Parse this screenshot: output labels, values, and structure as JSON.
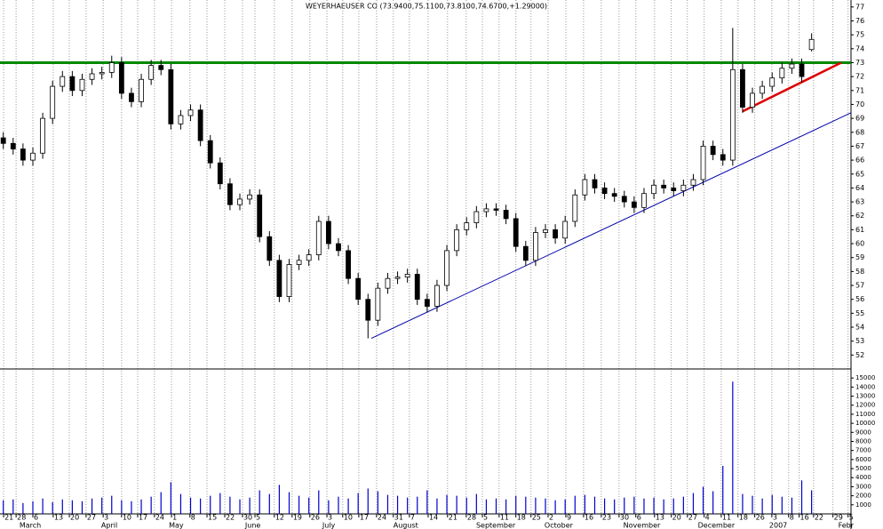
{
  "chart_data": {
    "type": "candlestick",
    "title": "WEYERHAEUSER CO (73.9400,75.1100,73.8100,74.6700,+1.29000)",
    "x": [
      1,
      4,
      7,
      10,
      13,
      16,
      19,
      22,
      25,
      28,
      31,
      34,
      37,
      40,
      43,
      46,
      49,
      52,
      55,
      58,
      61,
      64,
      67,
      70,
      73,
      76,
      79,
      82,
      85,
      88,
      91,
      94,
      97,
      100,
      103,
      106,
      109,
      112,
      115,
      118,
      121,
      124,
      127,
      130,
      133,
      136,
      139,
      142,
      145,
      148,
      151,
      154,
      157,
      160,
      163,
      166,
      169,
      172,
      175,
      178,
      181,
      184,
      187,
      190,
      193,
      196,
      199,
      202,
      205,
      208,
      211,
      214,
      217,
      220,
      223,
      226,
      229,
      232,
      235,
      238,
      241,
      244,
      247
    ],
    "open": [
      67.6,
      67.2,
      66.8,
      66.0,
      66.5,
      69.0,
      71.3,
      72.0,
      71.0,
      71.8,
      72.2,
      72.3,
      73.0,
      70.8,
      70.2,
      71.8,
      72.8,
      72.5,
      68.6,
      69.2,
      69.6,
      67.4,
      65.8,
      64.3,
      62.8,
      63.2,
      63.5,
      60.5,
      58.8,
      56.2,
      58.5,
      58.8,
      59.2,
      61.6,
      60.0,
      59.5,
      57.5,
      56.0,
      54.5,
      56.8,
      57.5,
      57.6,
      57.8,
      56.0,
      55.5,
      57.0,
      59.5,
      61.0,
      61.5,
      62.3,
      62.5,
      62.4,
      61.8,
      59.8,
      58.8,
      60.8,
      61.0,
      60.4,
      61.6,
      63.5,
      64.6,
      64.0,
      63.6,
      63.4,
      63.0,
      62.6,
      63.6,
      64.2,
      64.0,
      63.8,
      64.2,
      64.6,
      67.0,
      66.4,
      66.0,
      72.5,
      69.8,
      70.8,
      71.3,
      71.9,
      72.6,
      72.9,
      73.94
    ],
    "high": [
      68.0,
      67.6,
      67.2,
      66.9,
      69.4,
      71.7,
      72.4,
      72.4,
      72.2,
      72.6,
      72.7,
      73.5,
      73.4,
      71.2,
      72.2,
      73.2,
      73.2,
      72.9,
      69.6,
      70.0,
      70.0,
      67.8,
      66.2,
      64.7,
      63.6,
      63.9,
      63.9,
      60.9,
      59.2,
      58.9,
      59.2,
      59.6,
      62.0,
      62.0,
      60.4,
      59.9,
      57.9,
      56.4,
      57.2,
      57.9,
      58.0,
      58.2,
      58.2,
      56.4,
      57.4,
      59.9,
      61.4,
      61.9,
      62.7,
      62.9,
      62.9,
      62.8,
      62.2,
      60.2,
      61.2,
      61.4,
      61.4,
      62.0,
      63.9,
      65.0,
      65.0,
      64.4,
      64.0,
      63.8,
      63.4,
      64.0,
      64.6,
      64.6,
      64.4,
      64.6,
      65.0,
      67.4,
      67.4,
      66.8,
      75.5,
      72.9,
      71.2,
      71.7,
      72.3,
      73.0,
      73.3,
      73.3,
      75.11
    ],
    "low": [
      66.8,
      66.4,
      65.6,
      65.6,
      66.1,
      68.6,
      70.9,
      70.6,
      70.6,
      71.4,
      71.8,
      71.9,
      70.4,
      69.8,
      69.8,
      71.4,
      72.1,
      68.2,
      68.2,
      68.8,
      67.0,
      65.4,
      63.9,
      62.4,
      62.4,
      62.8,
      60.1,
      58.4,
      55.8,
      55.8,
      58.1,
      58.4,
      58.8,
      59.6,
      59.1,
      57.1,
      55.6,
      53.2,
      54.1,
      56.4,
      57.1,
      57.2,
      55.6,
      55.1,
      55.1,
      56.6,
      59.1,
      60.6,
      61.1,
      61.9,
      62.0,
      61.4,
      59.4,
      58.4,
      58.4,
      60.4,
      60.0,
      60.0,
      61.2,
      63.1,
      63.6,
      63.2,
      63.0,
      62.6,
      62.2,
      62.2,
      63.2,
      63.6,
      63.4,
      63.4,
      63.8,
      64.2,
      66.0,
      65.6,
      65.6,
      69.4,
      69.4,
      70.4,
      70.9,
      71.5,
      72.2,
      71.6,
      73.81
    ],
    "close": [
      67.2,
      66.8,
      66.0,
      66.5,
      69.0,
      71.3,
      72.0,
      71.0,
      71.8,
      72.2,
      72.3,
      73.0,
      70.8,
      70.2,
      71.8,
      72.8,
      72.5,
      68.6,
      69.2,
      69.6,
      67.4,
      65.8,
      64.3,
      62.8,
      63.2,
      63.5,
      60.5,
      58.8,
      56.2,
      58.5,
      58.8,
      59.2,
      61.6,
      60.0,
      59.5,
      57.5,
      56.0,
      54.5,
      56.8,
      57.5,
      57.6,
      57.8,
      56.0,
      55.5,
      57.0,
      59.5,
      61.0,
      61.5,
      62.3,
      62.5,
      62.4,
      61.8,
      59.8,
      58.8,
      60.8,
      61.0,
      60.4,
      61.6,
      63.5,
      64.6,
      64.0,
      63.6,
      63.4,
      63.0,
      62.6,
      63.6,
      64.2,
      64.0,
      63.8,
      64.2,
      64.6,
      67.0,
      66.4,
      66.0,
      72.5,
      69.8,
      70.8,
      71.3,
      71.9,
      72.6,
      72.9,
      72.0,
      74.67
    ],
    "volume": [
      1500,
      1600,
      1200,
      1400,
      1700,
      1300,
      1600,
      1500,
      1400,
      1700,
      1800,
      2000,
      1500,
      1400,
      1600,
      1900,
      2400,
      3500,
      2200,
      1800,
      1700,
      2000,
      2300,
      1900,
      1600,
      1800,
      2600,
      2200,
      3200,
      2400,
      2000,
      1800,
      2600,
      1500,
      1900,
      1700,
      2300,
      2800,
      2500,
      2100,
      2000,
      1800,
      1900,
      2600,
      1700,
      2100,
      2000,
      1800,
      2200,
      1600,
      1700,
      1600,
      2000,
      1900,
      1800,
      1700,
      1500,
      1600,
      2000,
      2100,
      1900,
      1700,
      1600,
      1800,
      1900,
      1700,
      1800,
      1600,
      1700,
      1900,
      2300,
      3000,
      2500,
      5300,
      14600,
      2200,
      2000,
      1700,
      2100,
      1900,
      1800,
      3700,
      2600
    ],
    "volume_color": "#0000cc",
    "xlim": [
      0,
      259
    ],
    "ylim": [
      51,
      77.5
    ],
    "yticks": [
      52,
      53,
      54,
      55,
      56,
      57,
      58,
      59,
      60,
      61,
      62,
      63,
      64,
      65,
      66,
      67,
      68,
      69,
      70,
      71,
      72,
      73,
      74,
      75,
      76,
      77
    ],
    "volume_ylim": [
      0,
      15900
    ],
    "volume_yticks": [
      1000,
      2000,
      3000,
      4000,
      5000,
      6000,
      7000,
      8000,
      9000,
      10000,
      11000,
      12000,
      13000,
      14000,
      15000
    ],
    "xticks": [
      {
        "value": 1.1,
        "label": "21"
      },
      {
        "value": 4.9,
        "label": "28"
      },
      {
        "value": 10,
        "label": "6"
      },
      {
        "value": 16.2,
        "label": "13"
      },
      {
        "value": 21.1,
        "label": "20"
      },
      {
        "value": 26.2,
        "label": "27"
      },
      {
        "value": 31.4,
        "label": "3"
      },
      {
        "value": 37,
        "label": "10"
      },
      {
        "value": 41.9,
        "label": "17"
      },
      {
        "value": 47,
        "label": "24"
      },
      {
        "value": 52.2,
        "label": "1"
      },
      {
        "value": 57.8,
        "label": "8"
      },
      {
        "value": 63,
        "label": "15"
      },
      {
        "value": 68.4,
        "label": "22"
      },
      {
        "value": 73.8,
        "label": "30"
      },
      {
        "value": 77.6,
        "label": "5"
      },
      {
        "value": 83.5,
        "label": "12"
      },
      {
        "value": 88.9,
        "label": "19"
      },
      {
        "value": 94.3,
        "label": "26"
      },
      {
        "value": 99.5,
        "label": "3"
      },
      {
        "value": 104.3,
        "label": "10"
      },
      {
        "value": 109.2,
        "label": "17"
      },
      {
        "value": 114.6,
        "label": "24"
      },
      {
        "value": 119.7,
        "label": "31"
      },
      {
        "value": 124.6,
        "label": "7"
      },
      {
        "value": 130.3,
        "label": "14"
      },
      {
        "value": 136.2,
        "label": "21"
      },
      {
        "value": 141.9,
        "label": "28"
      },
      {
        "value": 146.8,
        "label": "5"
      },
      {
        "value": 151.9,
        "label": "11"
      },
      {
        "value": 157,
        "label": "18"
      },
      {
        "value": 161.6,
        "label": "25"
      },
      {
        "value": 166.8,
        "label": "2"
      },
      {
        "value": 172.2,
        "label": "9"
      },
      {
        "value": 177.6,
        "label": "16"
      },
      {
        "value": 183,
        "label": "23"
      },
      {
        "value": 188.4,
        "label": "30"
      },
      {
        "value": 193.5,
        "label": "6"
      },
      {
        "value": 199.2,
        "label": "13"
      },
      {
        "value": 204.3,
        "label": "20"
      },
      {
        "value": 209.2,
        "label": "27"
      },
      {
        "value": 214.3,
        "label": "4"
      },
      {
        "value": 219.5,
        "label": "11"
      },
      {
        "value": 224.6,
        "label": "18"
      },
      {
        "value": 229.7,
        "label": "26"
      },
      {
        "value": 234.9,
        "label": "3"
      },
      {
        "value": 240,
        "label": "8"
      },
      {
        "value": 243.2,
        "label": "16"
      },
      {
        "value": 247.6,
        "label": "22"
      },
      {
        "value": 253.5,
        "label": "29"
      },
      {
        "value": 258.1,
        "label": "5"
      }
    ],
    "month_labels": [
      {
        "value": 5.9,
        "label": "March"
      },
      {
        "value": 30.8,
        "label": "April"
      },
      {
        "value": 51.4,
        "label": "May"
      },
      {
        "value": 74.6,
        "label": "June"
      },
      {
        "value": 98.1,
        "label": "July"
      },
      {
        "value": 119.7,
        "label": "August"
      },
      {
        "value": 144.9,
        "label": "September"
      },
      {
        "value": 165.7,
        "label": "October"
      },
      {
        "value": 189.7,
        "label": "November"
      },
      {
        "value": 212.4,
        "label": "December"
      },
      {
        "value": 234.1,
        "label": "2007"
      },
      {
        "value": 255.1,
        "label": "Febr"
      }
    ],
    "trendlines": [
      {
        "color": "#008800",
        "x": [
          0,
          259
        ],
        "y": [
          73,
          73
        ]
      },
      {
        "color": "#0000aa",
        "x": [
          113,
          259
        ],
        "y": [
          53.2,
          69.4
        ]
      },
      {
        "color": "#dd0000",
        "x": [
          226,
          256
        ],
        "y": [
          69.5,
          73.0
        ]
      }
    ],
    "grid": true
  }
}
